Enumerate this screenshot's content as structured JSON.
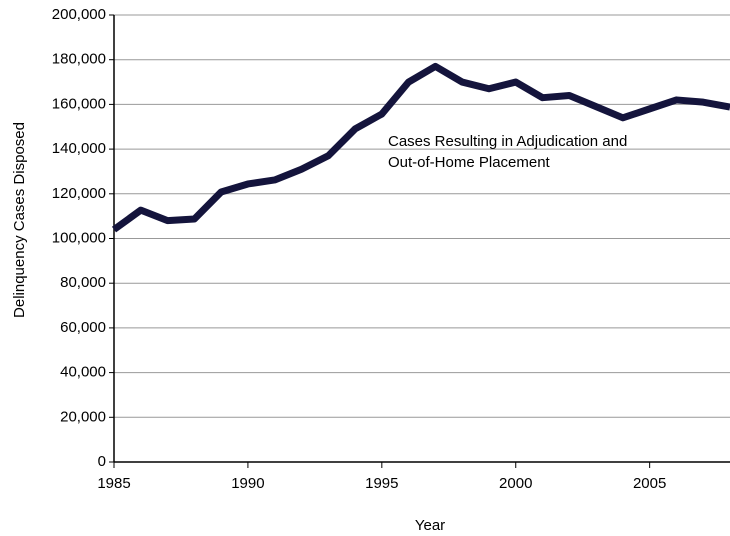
{
  "chart_data": {
    "type": "line",
    "y_label": "Delinquency Cases Disposed",
    "x_label": "Year",
    "annotation": [
      "Cases Resulting in Adjudication and",
      "Out-of-Home Placement"
    ],
    "x": [
      1985,
      1986,
      1987,
      1988,
      1989,
      1990,
      1991,
      1992,
      1993,
      1994,
      1995,
      1996,
      1997,
      1998,
      1999,
      2000,
      2001,
      2002,
      2003,
      2004,
      2005,
      2006,
      2007,
      2008
    ],
    "series": [
      {
        "name": "Cases Resulting in Adjudication and Out-of-Home Placement",
        "color": "#14143c",
        "values": [
          104000,
          112700,
          108000,
          108700,
          120800,
          124400,
          126200,
          131000,
          137000,
          149000,
          155700,
          170000,
          177000,
          170000,
          167000,
          170000,
          163000,
          164000,
          159000,
          154000,
          158000,
          162000,
          161000,
          158800
        ]
      }
    ],
    "xlim": [
      1985,
      2008
    ],
    "xticks": [
      1985,
      1990,
      1995,
      2000,
      2005
    ],
    "ylim": [
      0,
      200000
    ],
    "yticks": [
      0,
      {
        "value": 20000,
        "label": "20,000"
      },
      {
        "value": 40000,
        "label": "40,000"
      },
      {
        "value": 60000,
        "label": "60,000"
      },
      {
        "value": 80000,
        "label": "80,000"
      },
      {
        "value": 100000,
        "label": "100,000"
      },
      {
        "value": 120000,
        "label": "120,000"
      },
      {
        "value": 140000,
        "label": "140,000"
      },
      {
        "value": 160000,
        "label": "160,000"
      },
      {
        "value": 180000,
        "label": "180,000"
      },
      {
        "value": 200000,
        "label": "200,000"
      }
    ],
    "grid": true
  }
}
